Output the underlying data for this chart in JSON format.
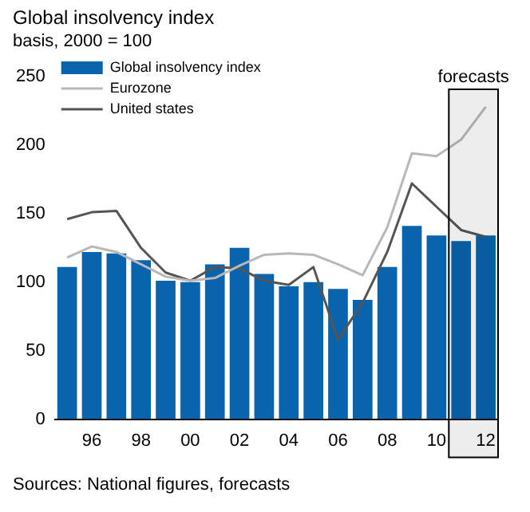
{
  "chart_data": {
    "type": "bar",
    "title": "Global insolvency index",
    "subtitle": "basis, 2000 = 100",
    "annotations": [
      "Sources: National figures, forecasts"
    ],
    "x": [
      1995,
      1996,
      1997,
      1998,
      1999,
      2000,
      2001,
      2002,
      2003,
      2004,
      2005,
      2006,
      2007,
      2008,
      2009,
      2010,
      2011,
      2012
    ],
    "series": [
      {
        "name": "Global insolvency index",
        "color": "#0a64ad",
        "values": [
          111,
          122,
          121,
          116,
          101,
          100,
          113,
          125,
          106,
          97,
          100,
          95,
          87,
          111,
          141,
          134,
          130,
          134
        ]
      },
      {
        "name": "Eurozone",
        "type": "line",
        "color": "#b8b8b8",
        "values": [
          118,
          126,
          122,
          113,
          104,
          101,
          103,
          112,
          120,
          121,
          120,
          113,
          105,
          140,
          194,
          192,
          204,
          228
        ]
      },
      {
        "name": "United states",
        "type": "line",
        "color": "#555555",
        "values": [
          146,
          151,
          152,
          125,
          107,
          101,
          111,
          110,
          101,
          98,
          111,
          58,
          85,
          122,
          172,
          155,
          138,
          133
        ]
      }
    ],
    "xlim": [
      1994.5,
      2012.5
    ],
    "xticks": [
      {
        "value": 1996,
        "label": "96"
      },
      {
        "value": 1998,
        "label": "98"
      },
      {
        "value": 2000,
        "label": "00"
      },
      {
        "value": 2002,
        "label": "02"
      },
      {
        "value": 2004,
        "label": "04"
      },
      {
        "value": 2006,
        "label": "06"
      },
      {
        "value": 2008,
        "label": "08"
      },
      {
        "value": 2010,
        "label": "10"
      },
      {
        "value": 2012,
        "label": "12"
      }
    ],
    "ylim": [
      0,
      250
    ],
    "yticks": [
      0,
      50,
      100,
      150,
      200,
      250
    ],
    "bands": [
      {
        "axis": "x",
        "from": 2010.5,
        "to": 2012.5,
        "label": "forecasts",
        "color": "#000000"
      }
    ],
    "grid": false,
    "legend": "top left",
    "marker": "none",
    "line_style": "solid"
  }
}
